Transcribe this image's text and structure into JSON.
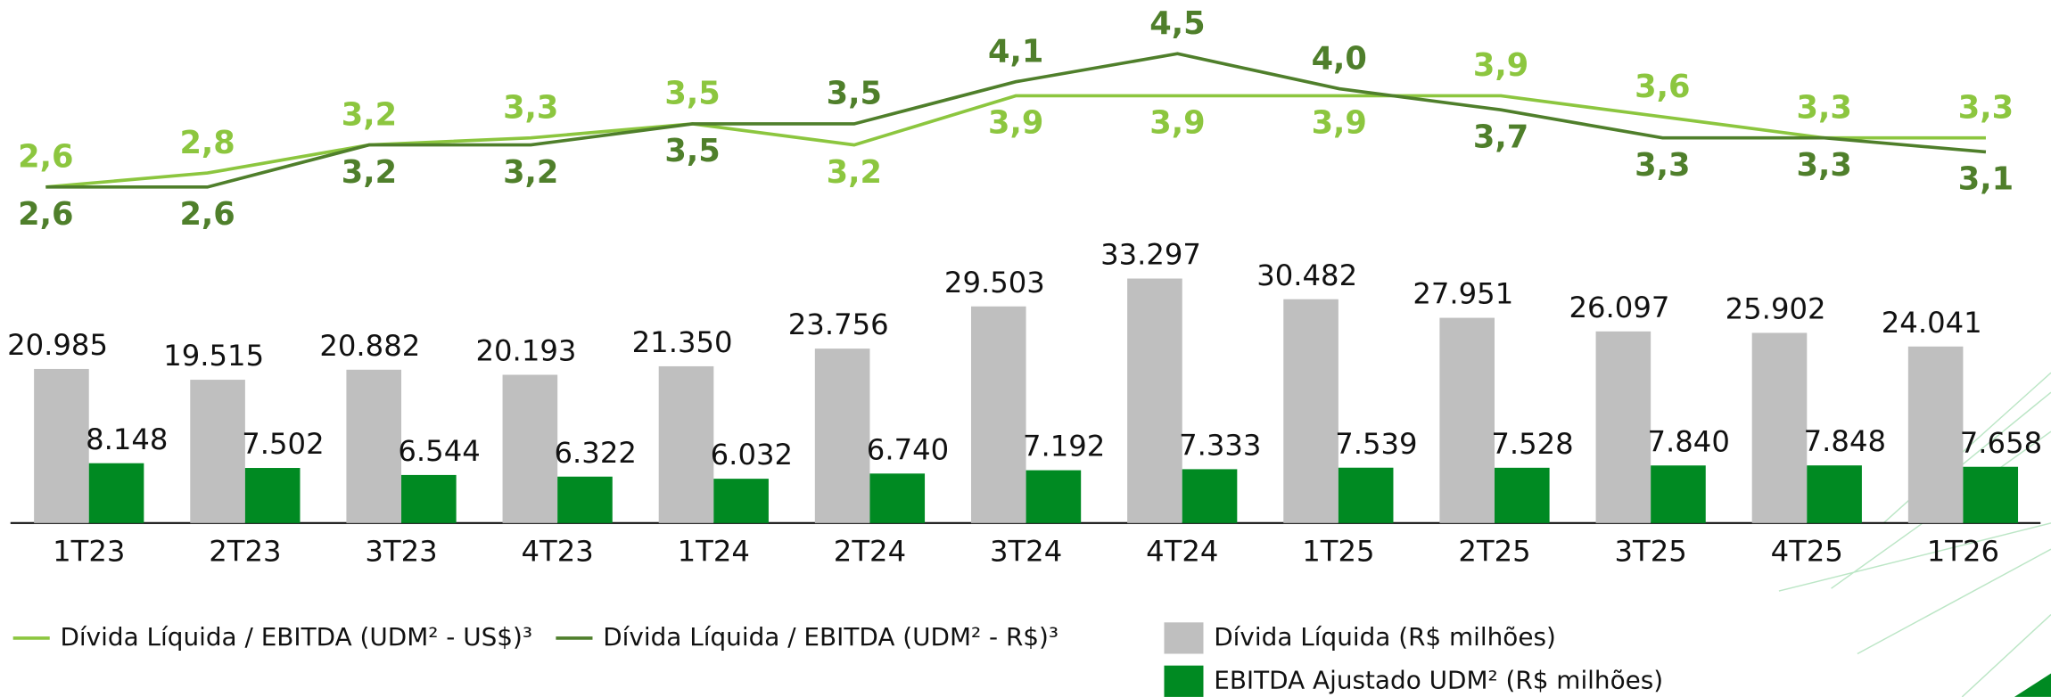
{
  "chart_data": {
    "type": "bar",
    "categories": [
      "1T23",
      "2T23",
      "3T23",
      "4T23",
      "1T24",
      "2T24",
      "3T24",
      "4T24",
      "1T25",
      "2T25",
      "3T25",
      "4T25",
      "1T26"
    ],
    "series": [
      {
        "name": "Dívida Líquida (R$ milhões)",
        "type": "bar",
        "color": "#bfbfbf",
        "values": [
          20985,
          19515,
          20882,
          20193,
          21350,
          23756,
          29503,
          33297,
          30482,
          27951,
          26097,
          25902,
          24041
        ],
        "value_labels": [
          "20.985",
          "19.515",
          "20.882",
          "20.193",
          "21.350",
          "23.756",
          "29.503",
          "33.297",
          "30.482",
          "27.951",
          "26.097",
          "25.902",
          "24.041"
        ]
      },
      {
        "name": "EBITDA Ajustado UDM² (R$ milhões)",
        "type": "bar",
        "color": "#008a22",
        "values": [
          8148,
          7502,
          6544,
          6322,
          6032,
          6740,
          7192,
          7333,
          7539,
          7528,
          7840,
          7848,
          7658
        ],
        "value_labels": [
          "8.148",
          "7.502",
          "6.544",
          "6.322",
          "6.032",
          "6.740",
          "7.192",
          "7.333",
          "7.539",
          "7.528",
          "7.840",
          "7.848",
          "7.658"
        ]
      },
      {
        "name": "Dívida Líquida / EBITDA (UDM² - US$)³",
        "type": "line",
        "color": "#8cc63f",
        "values": [
          2.6,
          2.8,
          3.2,
          3.3,
          3.5,
          3.2,
          3.9,
          3.9,
          3.9,
          3.9,
          3.6,
          3.3,
          3.3
        ],
        "value_labels": [
          "2,6",
          "2,8",
          "3,2",
          "3,3",
          "3,5",
          "3,2",
          "3,9",
          "3,9",
          "3,9",
          "3,9",
          "3,6",
          "3,3",
          "3,3"
        ]
      },
      {
        "name": "Dívida Líquida / EBITDA (UDM² - R$)³",
        "type": "line",
        "color": "#4f7f2b",
        "values": [
          2.6,
          2.6,
          3.2,
          3.2,
          3.5,
          3.5,
          4.1,
          4.5,
          4.0,
          3.7,
          3.3,
          3.3,
          3.1
        ],
        "value_labels": [
          "2,6",
          "2,6",
          "3,2",
          "3,2",
          "3,5",
          "3,5",
          "4,1",
          "4,5",
          "4,0",
          "3,7",
          "3,3",
          "3,3",
          "3,1"
        ]
      }
    ]
  }
}
